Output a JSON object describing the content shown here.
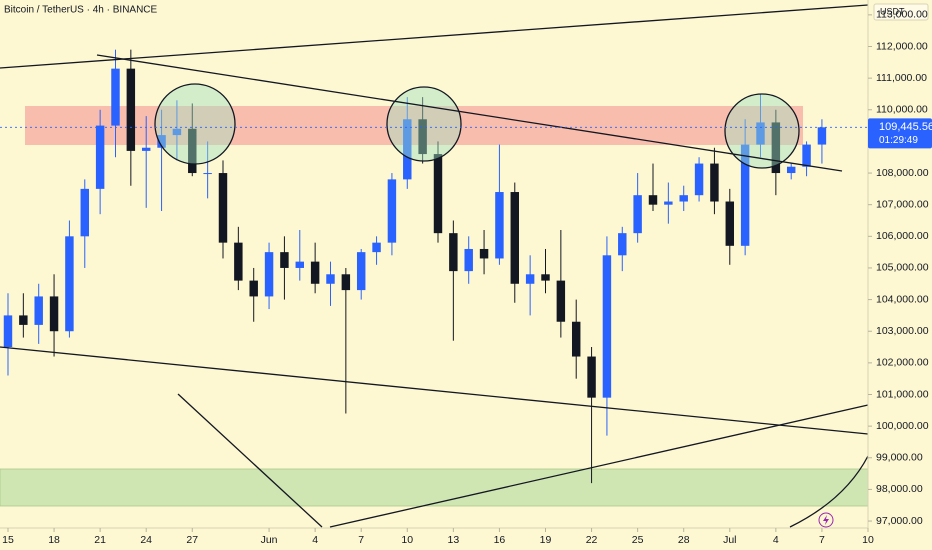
{
  "chart_data": {
    "type": "candlestick",
    "title": "Bitcoin / TetherUS · 4h · BINANCE",
    "currency": "USDT",
    "up_color": "#2962ff",
    "down_color": "#131722",
    "x": [
      -1,
      0,
      1,
      2,
      3,
      4,
      5,
      6,
      7,
      8,
      9,
      10,
      11,
      12,
      13,
      14,
      15,
      16,
      17,
      18,
      19,
      20,
      21,
      22,
      23,
      24,
      25,
      26,
      27,
      28,
      29,
      30,
      31,
      32,
      33,
      34,
      35,
      36,
      37,
      38,
      39,
      40,
      41,
      42,
      43,
      44,
      45,
      46,
      47,
      48,
      49,
      50,
      51,
      52,
      53
    ],
    "open": [
      103800,
      102500,
      103500,
      103200,
      104100,
      103000,
      106000,
      107500,
      109500,
      111300,
      108700,
      108800,
      109200,
      109400,
      108000,
      108000,
      105800,
      104600,
      104100,
      105500,
      105000,
      105200,
      104500,
      104800,
      104300,
      105500,
      105800,
      107800,
      109700,
      108600,
      106100,
      104900,
      105600,
      105300,
      107400,
      104500,
      104800,
      104600,
      103300,
      102200,
      100900,
      105400,
      106100,
      107300,
      107000,
      107100,
      107300,
      108300,
      107100,
      105700,
      108900,
      109600,
      108000,
      108200,
      108900
    ],
    "high": [
      104800,
      104200,
      104200,
      104500,
      104800,
      106500,
      107800,
      110000,
      111900,
      111900,
      109800,
      110000,
      110300,
      110200,
      109000,
      108400,
      106300,
      105000,
      105800,
      106000,
      106200,
      105800,
      105200,
      105000,
      105600,
      106000,
      108000,
      110400,
      110400,
      109000,
      106500,
      106000,
      106200,
      108900,
      107700,
      105400,
      105600,
      106200,
      104000,
      102500,
      106000,
      106300,
      108000,
      108300,
      107700,
      107600,
      108500,
      108800,
      107500,
      109700,
      110500,
      110000,
      108300,
      109000,
      109700
    ],
    "low": [
      101500,
      101600,
      102800,
      102600,
      102200,
      102800,
      105000,
      106700,
      108500,
      107600,
      106900,
      106800,
      108400,
      107900,
      107200,
      105300,
      104300,
      103300,
      103700,
      104000,
      104600,
      104200,
      103800,
      100400,
      104000,
      105100,
      105400,
      107500,
      108300,
      105800,
      102700,
      104500,
      104800,
      105100,
      103900,
      103500,
      104200,
      102800,
      101500,
      98200,
      99700,
      104900,
      105800,
      106800,
      106400,
      106800,
      107100,
      106700,
      105100,
      105400,
      108500,
      107300,
      107800,
      107900,
      108300
    ],
    "close": [
      102500,
      103500,
      103200,
      104100,
      103000,
      106000,
      107500,
      109500,
      111300,
      108700,
      108800,
      109200,
      109400,
      108000,
      108000,
      105800,
      104600,
      104100,
      105500,
      105000,
      105200,
      104500,
      104800,
      104300,
      105500,
      105800,
      107800,
      109700,
      108600,
      106100,
      104900,
      105600,
      105300,
      107400,
      104500,
      104800,
      104600,
      103300,
      102200,
      100900,
      105400,
      106100,
      107300,
      107000,
      107100,
      107300,
      108300,
      107100,
      105700,
      108900,
      109600,
      108000,
      108200,
      108900,
      109445.56
    ],
    "xlim": [
      -0.52,
      56
    ],
    "xticks": [
      {
        "value": 0,
        "label": "15"
      },
      {
        "value": 3,
        "label": "18"
      },
      {
        "value": 6,
        "label": "21"
      },
      {
        "value": 9,
        "label": "24"
      },
      {
        "value": 12,
        "label": "27"
      },
      {
        "value": 17,
        "label": "Jun"
      },
      {
        "value": 20,
        "label": "4"
      },
      {
        "value": 23,
        "label": "7"
      },
      {
        "value": 26,
        "label": "10"
      },
      {
        "value": 29,
        "label": "13"
      },
      {
        "value": 32,
        "label": "16"
      },
      {
        "value": 35,
        "label": "19"
      },
      {
        "value": 38,
        "label": "22"
      },
      {
        "value": 41,
        "label": "25"
      },
      {
        "value": 44,
        "label": "28"
      },
      {
        "value": 47,
        "label": "Jul"
      },
      {
        "value": 50,
        "label": "4"
      },
      {
        "value": 53,
        "label": "7"
      },
      {
        "value": 56,
        "label": "10"
      }
    ],
    "ylim": [
      96780,
      113470
    ],
    "yticks": [
      {
        "value": 97000,
        "label": "97,000.00"
      },
      {
        "value": 98000,
        "label": "98,000.00"
      },
      {
        "value": 99000,
        "label": "99,000.00"
      },
      {
        "value": 100000,
        "label": "100,000.00"
      },
      {
        "value": 101000,
        "label": "101,000.00"
      },
      {
        "value": 102000,
        "label": "102,000.00"
      },
      {
        "value": 103000,
        "label": "103,000.00"
      },
      {
        "value": 104000,
        "label": "104,000.00"
      },
      {
        "value": 105000,
        "label": "105,000.00"
      },
      {
        "value": 106000,
        "label": "106,000.00"
      },
      {
        "value": 107000,
        "label": "107,000.00"
      },
      {
        "value": 108000,
        "label": "108,000.00"
      },
      {
        "value": 109000,
        "label": "109,000.00"
      },
      {
        "value": 110000,
        "label": "110,000.00"
      },
      {
        "value": 111000,
        "label": "111,000.00"
      },
      {
        "value": 112000,
        "label": "112,000.00"
      },
      {
        "value": 113000,
        "label": "113,000.00"
      }
    ],
    "last_price": {
      "value": 109445.56,
      "label": "109,445.56"
    },
    "countdown": "01:29:49"
  }
}
